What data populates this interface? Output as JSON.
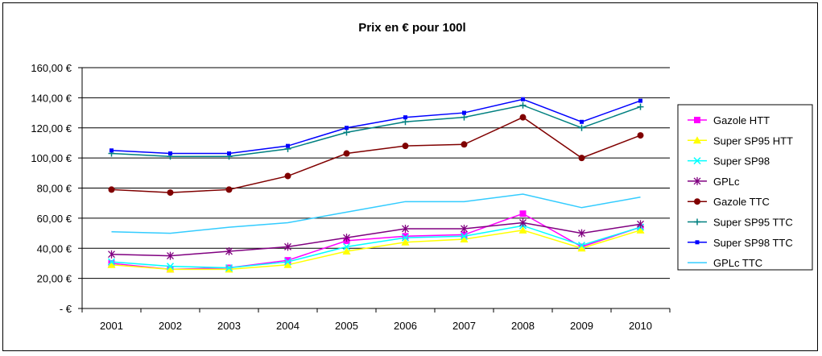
{
  "chart_data": {
    "type": "line",
    "title": "Prix en € pour 100l",
    "xlabel": "",
    "ylabel": "",
    "categories": [
      "2001",
      "2002",
      "2003",
      "2004",
      "2005",
      "2006",
      "2007",
      "2008",
      "2009",
      "2010"
    ],
    "y_tick_labels": [
      "-   €",
      "20,00 €",
      "40,00 €",
      "60,00 €",
      "80,00 €",
      "100,00 €",
      "120,00 €",
      "140,00 €",
      "160,00 €"
    ],
    "ylim": [
      0,
      160
    ],
    "grid": true,
    "plot_background": "#ffffff",
    "legend_position": "right",
    "series": [
      {
        "name": "Gazole HTT",
        "color": "#ff00ff",
        "marker": "square",
        "values": [
          30,
          26,
          27,
          32,
          45,
          48,
          49,
          63,
          41,
          54
        ]
      },
      {
        "name": "Super SP95 HTT",
        "color": "#ffff00",
        "marker": "triangle",
        "values": [
          29,
          26,
          26,
          29,
          38,
          44,
          46,
          52,
          40,
          52
        ]
      },
      {
        "name": "Super SP98",
        "color": "#00ffff",
        "marker": "x",
        "values": [
          31,
          28,
          27,
          31,
          41,
          47,
          48,
          55,
          42,
          54
        ]
      },
      {
        "name": "GPLc",
        "color": "#800080",
        "marker": "star",
        "values": [
          36,
          35,
          38,
          41,
          47,
          53,
          53,
          57,
          50,
          56
        ]
      },
      {
        "name": "Gazole TTC",
        "color": "#800000",
        "marker": "circle",
        "values": [
          79,
          77,
          79,
          88,
          103,
          108,
          109,
          127,
          100,
          115
        ]
      },
      {
        "name": "Super SP95 TTC",
        "color": "#008080",
        "marker": "plus",
        "values": [
          103,
          101,
          101,
          106,
          117,
          124,
          127,
          135,
          120,
          134
        ]
      },
      {
        "name": "Super SP98 TTC",
        "color": "#0000ff",
        "marker": "smallsquare",
        "values": [
          105,
          103,
          103,
          108,
          120,
          127,
          130,
          139,
          124,
          138
        ]
      },
      {
        "name": "GPLc TTC",
        "color": "#33ccff",
        "marker": "none",
        "values": [
          51,
          50,
          54,
          57,
          64,
          71,
          71,
          76,
          67,
          74
        ]
      }
    ]
  }
}
